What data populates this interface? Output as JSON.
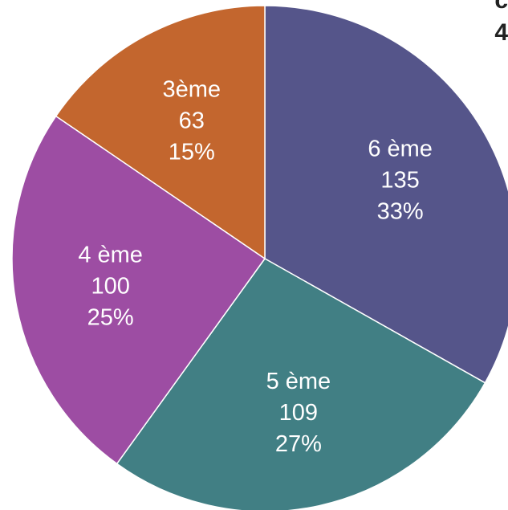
{
  "chart_data": {
    "type": "pie",
    "title": "",
    "start_angle_deg": 0,
    "direction": "clockwise",
    "slices": [
      {
        "label": "6 ème",
        "value": 135,
        "percent": "33%",
        "color": "#55558A"
      },
      {
        "label": "5 ème",
        "value": 109,
        "percent": "27%",
        "color": "#417F84"
      },
      {
        "label": "4 ème",
        "value": 100,
        "percent": "25%",
        "color": "#9D4DA3"
      },
      {
        "label": "3ème",
        "value": 63,
        "percent": "15%",
        "color": "#C3662E"
      }
    ]
  },
  "corner_text": {
    "line1": "c",
    "line2": "4"
  }
}
